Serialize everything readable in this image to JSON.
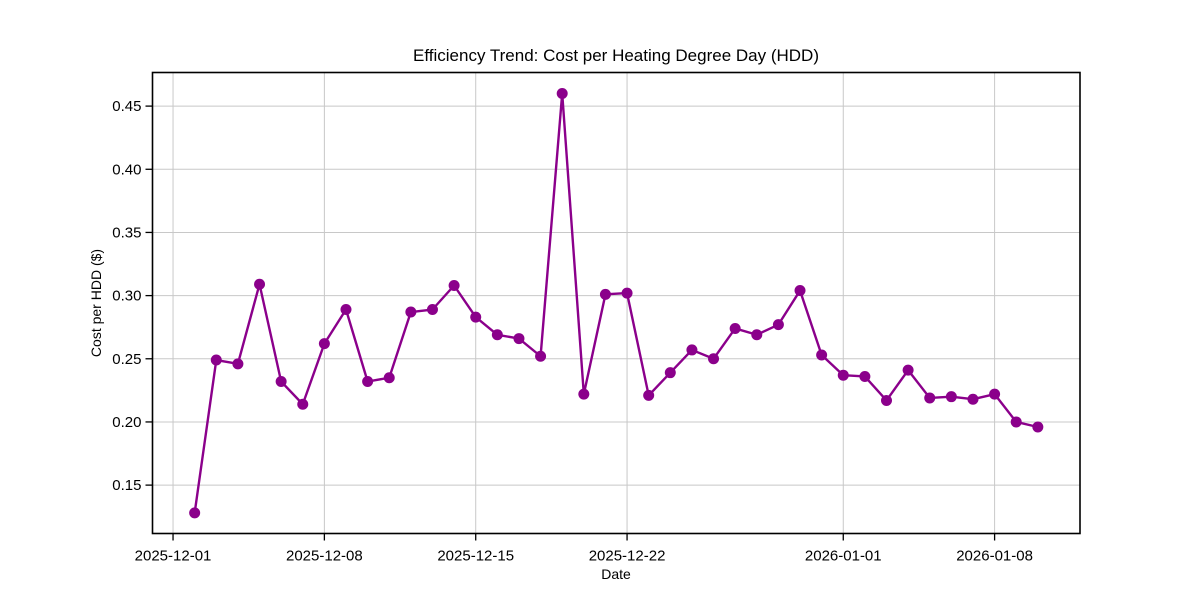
{
  "chart": {
    "title": "Efficiency Trend: Cost per Heating Degree Day (HDD)",
    "xlabel": "Date",
    "ylabel": "Cost per HDD ($)"
  },
  "style": {
    "line_color": "#8B008B",
    "grid_color": "#c8c8c8",
    "axis_color": "#000000",
    "background": "#ffffff"
  },
  "chart_data": {
    "type": "line",
    "title": "Efficiency Trend: Cost per Heating Degree Day (HDD)",
    "xlabel": "Date",
    "ylabel": "Cost per HDD ($)",
    "grid": true,
    "legend": false,
    "marker": "circle",
    "line_color": "#8B008B",
    "x_ticks": [
      "2025-12-01",
      "2025-12-08",
      "2025-12-15",
      "2025-12-22",
      "2026-01-01",
      "2026-01-08"
    ],
    "y_ticks": [
      0.15,
      0.2,
      0.25,
      0.3,
      0.35,
      0.4,
      0.45
    ],
    "xlim_days": [
      -0.95,
      41.95
    ],
    "ylim": [
      0.1117,
      0.4766
    ],
    "x": [
      "2025-12-02",
      "2025-12-03",
      "2025-12-04",
      "2025-12-05",
      "2025-12-06",
      "2025-12-07",
      "2025-12-08",
      "2025-12-09",
      "2025-12-10",
      "2025-12-11",
      "2025-12-12",
      "2025-12-13",
      "2025-12-14",
      "2025-12-15",
      "2025-12-16",
      "2025-12-17",
      "2025-12-18",
      "2025-12-19",
      "2025-12-20",
      "2025-12-21",
      "2025-12-22",
      "2025-12-23",
      "2025-12-24",
      "2025-12-25",
      "2025-12-26",
      "2025-12-27",
      "2025-12-28",
      "2025-12-29",
      "2025-12-30",
      "2025-12-31",
      "2026-01-01",
      "2026-01-02",
      "2026-01-03",
      "2026-01-04",
      "2026-01-05",
      "2026-01-06",
      "2026-01-07",
      "2026-01-08",
      "2026-01-09",
      "2026-01-10"
    ],
    "values": [
      0.128,
      0.249,
      0.246,
      0.309,
      0.232,
      0.214,
      0.262,
      0.289,
      0.232,
      0.235,
      0.287,
      0.289,
      0.308,
      0.283,
      0.269,
      0.266,
      0.252,
      0.46,
      0.222,
      0.301,
      0.302,
      0.221,
      0.239,
      0.257,
      0.25,
      0.274,
      0.269,
      0.277,
      0.304,
      0.253,
      0.237,
      0.236,
      0.217,
      0.241,
      0.219,
      0.22,
      0.218,
      0.222,
      0.2,
      0.196
    ]
  }
}
